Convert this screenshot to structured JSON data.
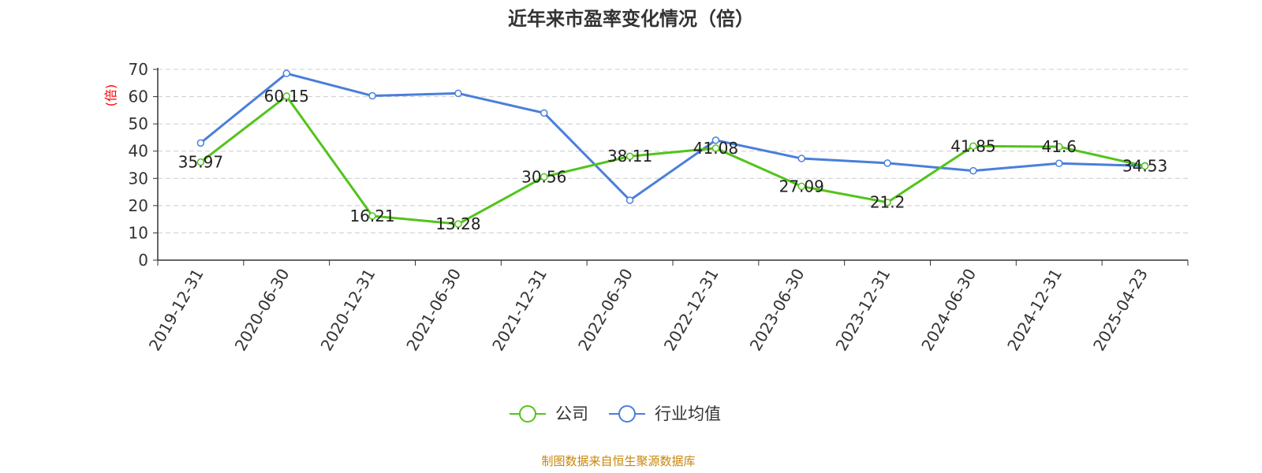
{
  "chart_data": {
    "type": "line",
    "title": "近年来市盈率变化情况（倍）",
    "ylabel": "(倍)",
    "ylim": [
      0,
      70
    ],
    "yticks": [
      0,
      10,
      20,
      30,
      40,
      50,
      60,
      70
    ],
    "grid": true,
    "legend_position": "bottom",
    "categories": [
      "2019-12-31",
      "2020-06-30",
      "2020-12-31",
      "2021-06-30",
      "2021-12-31",
      "2022-06-30",
      "2022-12-31",
      "2023-06-30",
      "2023-12-31",
      "2024-06-30",
      "2024-12-31",
      "2025-04-23"
    ],
    "series": [
      {
        "name": "公司",
        "color": "#52c41a",
        "values": [
          35.97,
          60.15,
          16.21,
          13.28,
          30.56,
          38.11,
          41.08,
          27.09,
          21.2,
          41.85,
          41.6,
          34.53
        ],
        "labels": [
          "35.97",
          "60.15",
          "16.21",
          "13.28",
          "30.56",
          "38.11",
          "41.08",
          "27.09",
          "21.2",
          "41.85",
          "41.6",
          "34.53"
        ]
      },
      {
        "name": "行业均值",
        "color": "#4a7fdb",
        "values": [
          43.0,
          68.5,
          60.3,
          61.2,
          54.0,
          22.0,
          44.0,
          37.3,
          35.6,
          32.8,
          35.5,
          34.6
        ]
      }
    ],
    "source": "制图数据来自恒生聚源数据库"
  },
  "colors": {
    "ylabel": "#ff0000",
    "source": "#c8860a",
    "axis": "#333333",
    "grid": "#cccccc"
  }
}
